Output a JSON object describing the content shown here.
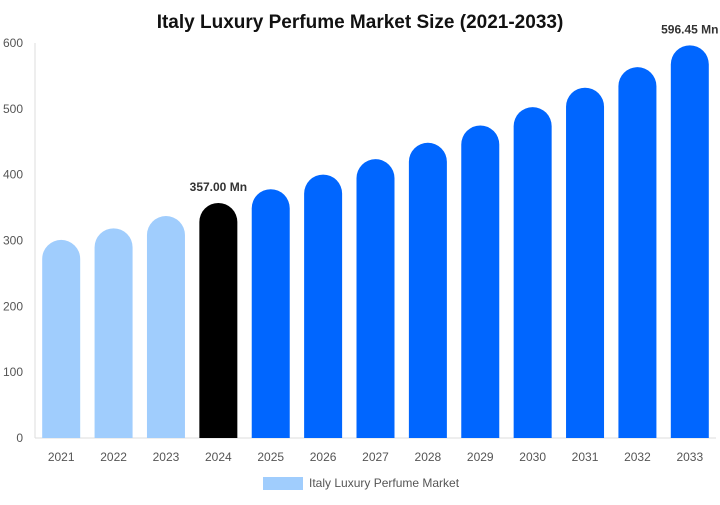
{
  "chart_data": {
    "type": "bar",
    "title": "Italy Luxury Perfume Market Size (2021-2033)",
    "xlabel": "",
    "ylabel": "",
    "ylim": [
      0,
      600
    ],
    "yticks": [
      0,
      100,
      200,
      300,
      400,
      500,
      600
    ],
    "grid": false,
    "legend_position": "bottom",
    "categories": [
      "2021",
      "2022",
      "2023",
      "2024",
      "2025",
      "2026",
      "2027",
      "2028",
      "2029",
      "2030",
      "2031",
      "2032",
      "2033"
    ],
    "series": [
      {
        "name": "Italy Luxury Perfume Market",
        "values": [
          300.9,
          318.5,
          337.2,
          357.0,
          377.9,
          400.1,
          423.6,
          448.4,
          474.7,
          502.6,
          532.1,
          563.3,
          596.45
        ]
      }
    ],
    "bar_colors": {
      "historical": "#a0cdfd",
      "base_year": "#000000",
      "forecast": "#0066ff"
    },
    "legend_color": "#a0cdfd",
    "data_labels": [
      {
        "category": "2024",
        "text": "357.00 Mn"
      },
      {
        "category": "2033",
        "text": "596.45 Mn"
      }
    ]
  }
}
